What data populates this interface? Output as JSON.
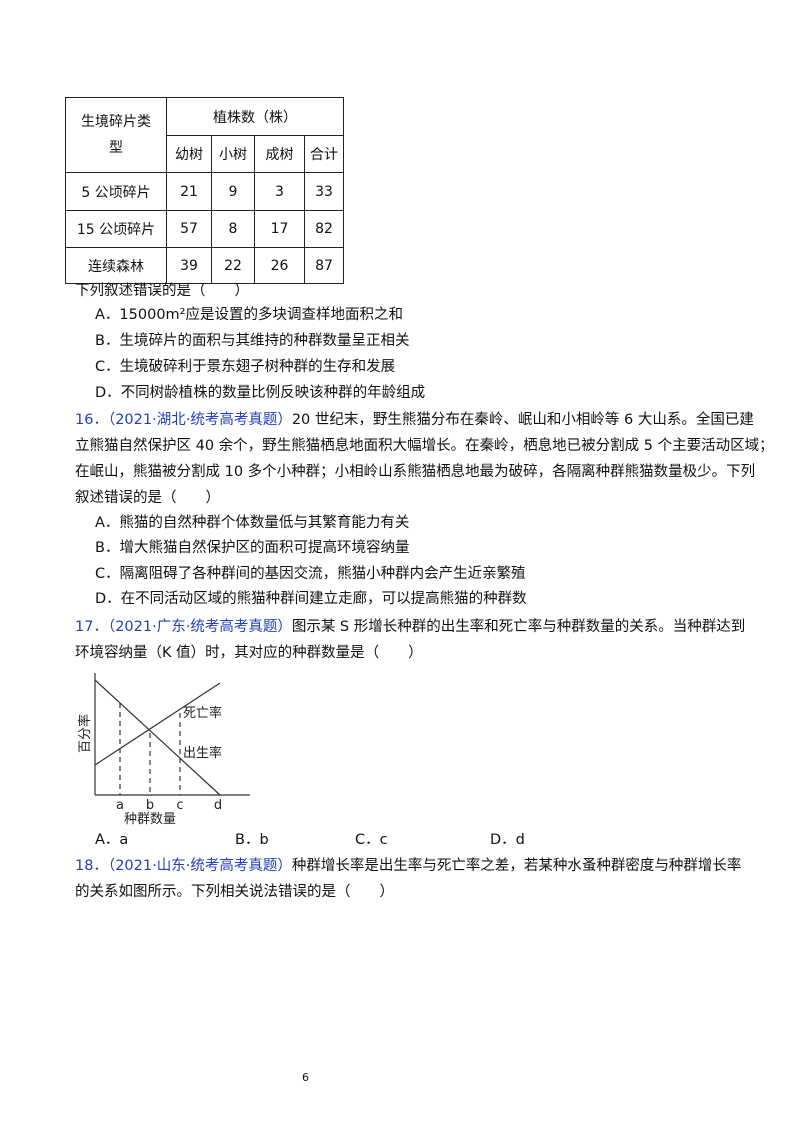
{
  "table": {
    "header": {
      "row_label": "生境碎片类型",
      "group": "植株数（株）",
      "columns": [
        "幼树",
        "小树",
        "成树",
        "合计"
      ]
    },
    "rows": [
      [
        "5 公顷碎片",
        21,
        9,
        3,
        33
      ],
      [
        "15 公顷碎片",
        57,
        8,
        17,
        82
      ],
      [
        "连续森林",
        39,
        22,
        26,
        87
      ]
    ]
  },
  "q15": {
    "stem": "下列叙述错误的是（　　）",
    "options": [
      "A．15000m²应是设置的多块调查样地面积之和",
      "B．生境碎片的面积与其维持的种群数量呈正相关",
      "C．生境破碎利于景东翅子树种群的生存和发展",
      "D．不同树龄植株的数量比例反映该种群的年龄组成"
    ]
  },
  "q16": {
    "number": "16．",
    "source": "（2021·湖北·统考高考真题）",
    "stem_lines": [
      "20 世纪末，野生熊猫分布在秦岭、岷山和小相岭等 6 大山系。全国已建",
      "立熊猫自然保护区 40 余个，野生熊猫栖息地面积大幅增长。在秦岭，栖息地已被分割成 5 个主要活动区域；",
      "在岷山，熊猫被分割成 10 多个小种群；小相岭山系熊猫栖息地最为破碎，各隔离种群熊猫数量极少。下列",
      "叙述错误的是（　　）"
    ],
    "options": [
      "A．熊猫的自然种群个体数量低与其繁育能力有关",
      "B．增大熊猫自然保护区的面积可提高环境容纳量",
      "C．隔离阻碍了各种群间的基因交流，熊猫小种群内会产生近亲繁殖",
      "D．在不同活动区域的熊猫种群间建立走廊，可以提高熊猫的种群数"
    ]
  },
  "q17": {
    "number": "17．",
    "source": "（2021·广东·统考高考真题）",
    "stem_lines": [
      "图示某 S 形增长种群的出生率和死亡率与种群数量的关系。当种群达到",
      "环境容纳量（K 值）时，其对应的种群数量是（　　）"
    ],
    "figure": {
      "y_label": "百分率",
      "x_label": "种群数量",
      "death_label": "死亡率",
      "birth_label": "出生率",
      "points": [
        "a",
        "b",
        "c",
        "d"
      ]
    },
    "options": [
      "A．a",
      "B．b",
      "C．c",
      "D．d"
    ]
  },
  "q18": {
    "number": "18．",
    "source": "（2021·山东·统考高考真题）",
    "stem_lines": [
      "种群增长率是出生率与死亡率之差，若某种水蚤种群密度与种群增长率",
      "的关系如图所示。下列相关说法错误的是（　　）"
    ]
  },
  "page_number": "6"
}
